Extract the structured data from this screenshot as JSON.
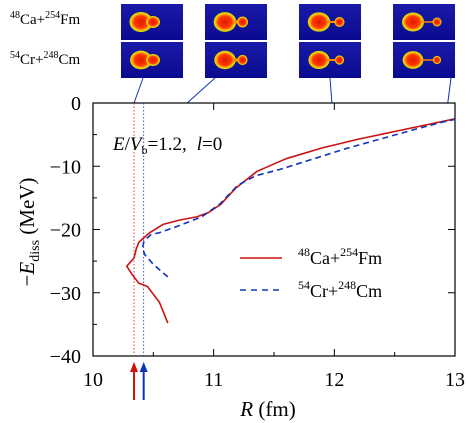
{
  "chart_data": {
    "type": "line",
    "annotation": {
      "e_label": "E",
      "slash": "/",
      "v_label": "V",
      "v_sub": "b",
      "value": "=1.2,",
      "l_label": "l",
      "l_value": "=0"
    },
    "xlabel": {
      "symbol": "R",
      "unit": " (fm)"
    },
    "ylabel": {
      "minus": "−",
      "symbol": "E",
      "sub": "diss",
      "unit": " (MeV)"
    },
    "xlim": [
      10,
      13
    ],
    "ylim": [
      -40,
      0
    ],
    "xticks": [
      "10",
      "11",
      "12",
      "13"
    ],
    "yticks": [
      "0",
      "−10",
      "−20",
      "−30",
      "−40"
    ],
    "xtick_values": [
      10,
      11,
      12,
      13
    ],
    "ytick_values": [
      0,
      -10,
      -20,
      -30,
      -40
    ],
    "grid": false,
    "legend_position": "center-right",
    "series": [
      {
        "name_parts": {
          "m1": "48",
          "e1": "Ca+",
          "m2": "254",
          "e2": "Fm"
        },
        "color": "#cc1111",
        "style": "solid",
        "x": [
          10.62,
          10.55,
          10.45,
          10.38,
          10.32,
          10.28,
          10.34,
          10.36,
          10.38,
          10.41,
          10.47,
          10.58,
          10.72,
          10.86,
          10.96,
          11.06,
          11.18,
          11.36,
          11.6,
          11.9,
          12.2,
          12.5,
          12.8,
          13.0
        ],
        "y": [
          -34.8,
          -31.5,
          -29.0,
          -28.5,
          -27.0,
          -25.8,
          -24.5,
          -23.0,
          -22.0,
          -21.5,
          -20.5,
          -19.2,
          -18.5,
          -18.0,
          -17.3,
          -16.0,
          -13.5,
          -10.8,
          -8.8,
          -7.1,
          -5.7,
          -4.5,
          -3.3,
          -2.5
        ]
      },
      {
        "name_parts": {
          "m1": "54",
          "e1": "Cr+",
          "m2": "248",
          "e2": "Cm"
        },
        "color": "#1133bb",
        "style": "dashed",
        "x": [
          10.62,
          10.5,
          10.43,
          10.41,
          10.42,
          10.44,
          10.48,
          10.55,
          10.7,
          10.9,
          11.05,
          11.2,
          11.35,
          11.55,
          11.8,
          12.1,
          12.4,
          12.7,
          12.9,
          13.0
        ],
        "y": [
          -27.5,
          -25.5,
          -24.0,
          -23.0,
          -22.0,
          -21.5,
          -20.8,
          -20.5,
          -19.5,
          -18.0,
          -16.0,
          -13.0,
          -11.5,
          -10.5,
          -9.0,
          -7.2,
          -5.6,
          -4.0,
          -3.0,
          -2.6
        ]
      }
    ],
    "markers": [
      {
        "x": 10.34,
        "color": "#cc1111"
      },
      {
        "x": 10.42,
        "color": "#1133bb"
      }
    ],
    "insets": {
      "row_labels": [
        {
          "m1": "48",
          "e1": "Ca+",
          "m2": "254",
          "e2": "Fm"
        },
        {
          "m1": "54",
          "e1": "Cr+",
          "m2": "248",
          "e2": "Cm"
        }
      ],
      "panel_x": [
        10.34,
        10.78,
        11.98,
        12.94
      ],
      "neck_stage": [
        0.0,
        0.35,
        0.65,
        1.0
      ]
    }
  }
}
